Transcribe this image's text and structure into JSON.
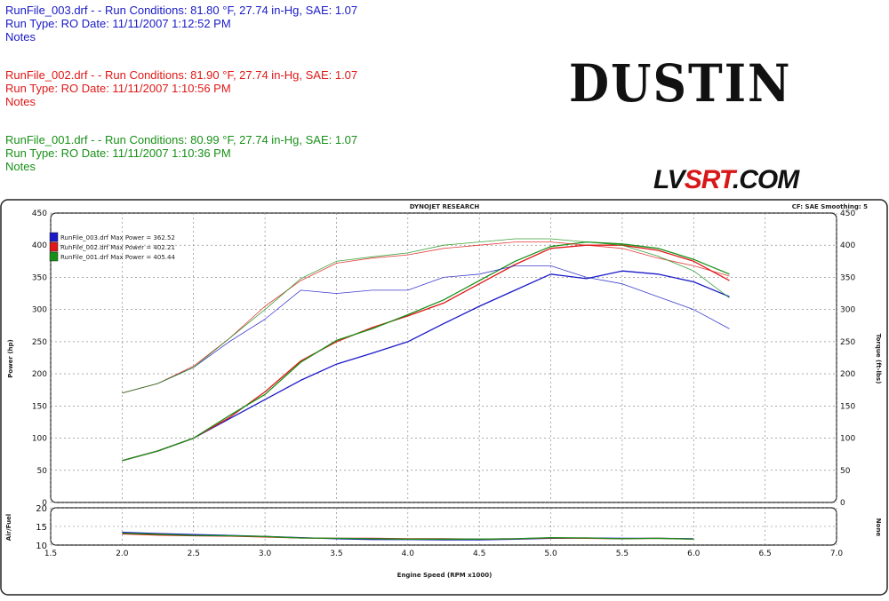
{
  "header": {
    "runs": [
      {
        "id": "run3",
        "line1": "RunFile_003.drf -   -   Run Conditions: 81.80 °F, 27.74 in-Hg, SAE: 1.07",
        "line2": "Run Type: RO  Date: 11/11/2007 1:12:52 PM",
        "line3": "Notes"
      },
      {
        "id": "run2",
        "line1": "RunFile_002.drf -   -   Run Conditions: 81.90 °F, 27.74 in-Hg, SAE: 1.07",
        "line2": "Run Type: RO  Date: 11/11/2007 1:10:56 PM",
        "line3": "Notes"
      },
      {
        "id": "run1",
        "line1": "RunFile_001.drf -   -   Run Conditions: 80.99 °F, 27.74 in-Hg, SAE: 1.07",
        "line2": "Run Type: RO  Date: 11/11/2007 1:10:36 PM",
        "line3": "Notes"
      }
    ],
    "brand": "DUSTIN",
    "site_prefix": "LV",
    "site_accent": "SRT",
    "site_suffix": ".COM"
  },
  "chart_data": {
    "type": "line",
    "title": "DYNOJET RESEARCH",
    "settings": "CF: SAE  Smoothing: 5",
    "xlabel": "Engine Speed (RPM x1000)",
    "ylabel": "Power (hp)",
    "y2label": "Torque (ft-lbs)",
    "af_ylabel": "Air/Fuel",
    "af_y2label": "None",
    "xlim": [
      1.5,
      7.0
    ],
    "ylim": [
      0,
      450
    ],
    "af_ylim": [
      10,
      20
    ],
    "xticks": [
      "1.5",
      "2.0",
      "2.5",
      "3.0",
      "3.5",
      "4.0",
      "4.5",
      "5.0",
      "5.5",
      "6.0",
      "6.5",
      "7.0"
    ],
    "yticks": [
      "0",
      "50",
      "100",
      "150",
      "200",
      "250",
      "300",
      "350",
      "400",
      "450"
    ],
    "af_yticks": [
      "10",
      "15",
      "20"
    ],
    "grid": true,
    "legend": "top-left",
    "colors": {
      "run3": "#1a1ac8",
      "run2": "#e01818",
      "run1": "#189018"
    },
    "legend_entries": [
      {
        "key": "run3",
        "label": "RunFile_003.drf Max Power = 362.52"
      },
      {
        "key": "run2",
        "label": "RunFile_002.drf Max Power = 402.21"
      },
      {
        "key": "run1",
        "label": "RunFile_001.drf Max Power = 405.44"
      }
    ],
    "x": [
      2.0,
      2.25,
      2.5,
      2.75,
      3.0,
      3.25,
      3.5,
      3.75,
      4.0,
      4.25,
      4.5,
      4.75,
      5.0,
      5.25,
      5.5,
      5.75,
      6.0,
      6.25
    ],
    "series": [
      {
        "key": "run3",
        "quantity": "power",
        "values": [
          65,
          80,
          100,
          130,
          160,
          190,
          215,
          232,
          250,
          278,
          305,
          330,
          355,
          348,
          360,
          355,
          343,
          320
        ]
      },
      {
        "key": "run2",
        "quantity": "power",
        "values": [
          65,
          80,
          100,
          132,
          172,
          220,
          250,
          272,
          290,
          310,
          340,
          370,
          395,
          400,
          400,
          392,
          375,
          345
        ]
      },
      {
        "key": "run1",
        "quantity": "power",
        "values": [
          65,
          80,
          100,
          135,
          168,
          218,
          252,
          270,
          292,
          315,
          345,
          375,
          398,
          405,
          402,
          395,
          378,
          355
        ]
      },
      {
        "key": "run3",
        "quantity": "torque",
        "values": [
          170,
          185,
          210,
          250,
          285,
          330,
          325,
          330,
          330,
          350,
          355,
          368,
          368,
          350,
          340,
          320,
          300,
          270
        ]
      },
      {
        "key": "run2",
        "quantity": "torque",
        "values": [
          170,
          185,
          212,
          255,
          305,
          345,
          372,
          380,
          385,
          395,
          400,
          405,
          405,
          400,
          395,
          380,
          368,
          352
        ]
      },
      {
        "key": "run1",
        "quantity": "torque",
        "values": [
          170,
          185,
          210,
          255,
          300,
          348,
          375,
          382,
          388,
          400,
          405,
          410,
          410,
          405,
          400,
          383,
          360,
          318
        ]
      },
      {
        "key": "run3",
        "quantity": "air_fuel",
        "values": [
          13.4,
          13.1,
          12.8,
          12.6,
          12.3,
          12.0,
          11.7,
          11.5,
          11.5,
          11.4,
          11.4,
          11.6,
          11.8,
          11.9,
          11.8,
          11.8,
          11.7,
          null
        ]
      },
      {
        "key": "run2",
        "quantity": "air_fuel",
        "values": [
          13.0,
          12.7,
          12.5,
          12.4,
          12.2,
          11.9,
          11.8,
          11.8,
          11.7,
          11.7,
          11.6,
          11.7,
          11.9,
          11.8,
          11.7,
          11.8,
          11.6,
          null
        ]
      },
      {
        "key": "run1",
        "quantity": "air_fuel",
        "values": [
          13.2,
          12.9,
          12.6,
          12.5,
          12.3,
          11.9,
          11.8,
          11.7,
          11.6,
          11.6,
          11.6,
          11.7,
          12.0,
          11.9,
          11.7,
          11.8,
          11.6,
          null
        ]
      }
    ]
  }
}
